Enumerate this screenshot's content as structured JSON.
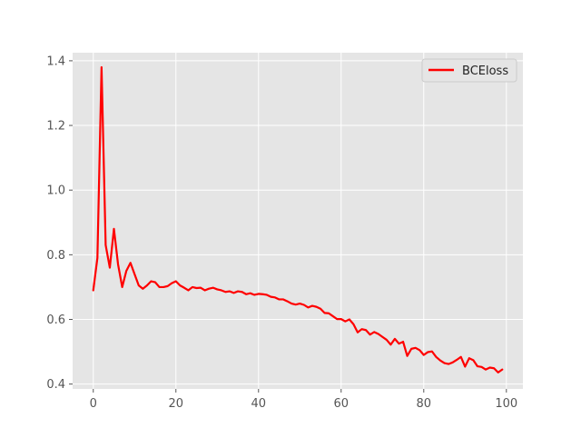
{
  "chart_data": {
    "type": "line",
    "title": "",
    "xlabel": "",
    "ylabel": "",
    "xlim": [
      -5,
      104
    ],
    "ylim": [
      0.385,
      1.425
    ],
    "x_ticks": [
      0,
      20,
      40,
      60,
      80,
      100
    ],
    "x_tick_labels": [
      "0",
      "20",
      "40",
      "60",
      "80",
      "100"
    ],
    "y_ticks": [
      0.4,
      0.6,
      0.8,
      1.0,
      1.2,
      1.4
    ],
    "y_tick_labels": [
      "0.4",
      "0.6",
      "0.8",
      "1.0",
      "1.2",
      "1.4"
    ],
    "grid": true,
    "legend": {
      "position": "top-right"
    },
    "series": [
      {
        "name": "BCEloss",
        "color": "#ff0000",
        "x": [
          0,
          1,
          2,
          3,
          4,
          5,
          6,
          7,
          8,
          9,
          10,
          11,
          12,
          13,
          14,
          15,
          16,
          17,
          18,
          19,
          20,
          21,
          22,
          23,
          24,
          25,
          26,
          27,
          28,
          29,
          30,
          31,
          32,
          33,
          34,
          35,
          36,
          37,
          38,
          39,
          40,
          41,
          42,
          43,
          44,
          45,
          46,
          47,
          48,
          49,
          50,
          51,
          52,
          53,
          54,
          55,
          56,
          57,
          58,
          59,
          60,
          61,
          62,
          63,
          64,
          65,
          66,
          67,
          68,
          69,
          70,
          71,
          72,
          73,
          74,
          75,
          76,
          77,
          78,
          79,
          80,
          81,
          82,
          83,
          84,
          85,
          86,
          87,
          88,
          89,
          90,
          91,
          92,
          93,
          94,
          95,
          96,
          97,
          98,
          99
        ],
        "values": [
          0.69,
          0.79,
          1.38,
          0.83,
          0.76,
          0.88,
          0.77,
          0.7,
          0.75,
          0.775,
          0.74,
          0.705,
          0.695,
          0.705,
          0.718,
          0.715,
          0.7,
          0.7,
          0.703,
          0.712,
          0.718,
          0.705,
          0.698,
          0.69,
          0.7,
          0.697,
          0.698,
          0.69,
          0.695,
          0.698,
          0.693,
          0.69,
          0.685,
          0.687,
          0.682,
          0.687,
          0.685,
          0.678,
          0.681,
          0.676,
          0.679,
          0.678,
          0.676,
          0.67,
          0.668,
          0.662,
          0.662,
          0.656,
          0.649,
          0.646,
          0.649,
          0.645,
          0.637,
          0.642,
          0.639,
          0.633,
          0.62,
          0.619,
          0.61,
          0.601,
          0.601,
          0.594,
          0.6,
          0.585,
          0.56,
          0.57,
          0.567,
          0.553,
          0.561,
          0.555,
          0.546,
          0.537,
          0.522,
          0.54,
          0.525,
          0.531,
          0.487,
          0.509,
          0.512,
          0.505,
          0.49,
          0.499,
          0.501,
          0.484,
          0.473,
          0.465,
          0.462,
          0.467,
          0.475,
          0.484,
          0.454,
          0.48,
          0.474,
          0.455,
          0.453,
          0.445,
          0.451,
          0.449,
          0.436,
          0.445
        ]
      }
    ]
  }
}
